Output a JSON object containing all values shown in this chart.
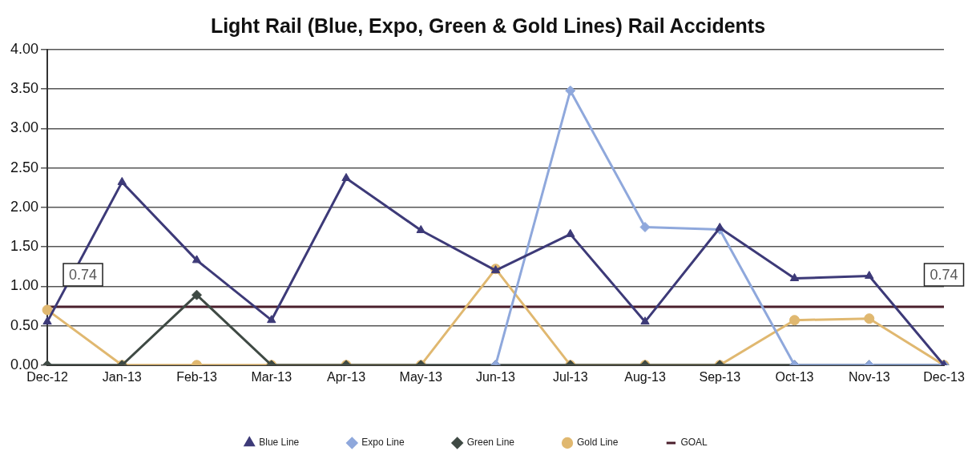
{
  "chart_data": {
    "type": "line",
    "title": "Light Rail (Blue, Expo, Green & Gold Lines) Rail Accidents",
    "categories": [
      "Dec-12",
      "Jan-13",
      "Feb-13",
      "Mar-13",
      "Apr-13",
      "May-13",
      "Jun-13",
      "Jul-13",
      "Aug-13",
      "Sep-13",
      "Oct-13",
      "Nov-13",
      "Dec-13"
    ],
    "series": [
      {
        "name": "Blue Line",
        "color": "#3d3a78",
        "marker": "triangle",
        "values": [
          0.55,
          2.32,
          1.33,
          0.57,
          2.37,
          1.71,
          1.2,
          1.66,
          0.55,
          1.74,
          1.1,
          1.13,
          0
        ]
      },
      {
        "name": "Expo Line",
        "color": "#8fa8dc",
        "marker": "diamond",
        "values": [
          null,
          null,
          null,
          null,
          null,
          null,
          0,
          3.48,
          1.75,
          1.72,
          0,
          0,
          0
        ]
      },
      {
        "name": "Green Line",
        "color": "#3f4a44",
        "marker": "diamond",
        "values": [
          0,
          0,
          0.89,
          0,
          0,
          0,
          0,
          0,
          0,
          0,
          0,
          0,
          0
        ]
      },
      {
        "name": "Gold Line",
        "color": "#e0b870",
        "marker": "circle",
        "values": [
          0.7,
          0,
          0,
          0,
          0,
          0,
          1.22,
          0,
          0,
          0,
          0.57,
          0.59,
          0
        ]
      },
      {
        "name": "GOAL",
        "color": "#4a1f2c",
        "marker": "none",
        "values": [
          0.74,
          0.74,
          0.74,
          0.74,
          0.74,
          0.74,
          0.74,
          0.74,
          0.74,
          0.74,
          0.74,
          0.74,
          0.74
        ],
        "value_labels": [
          "0.74",
          null,
          null,
          null,
          null,
          null,
          null,
          null,
          null,
          null,
          null,
          null,
          "0.74"
        ]
      }
    ],
    "ylim": [
      0,
      4
    ],
    "yticks": [
      {
        "value": 0,
        "label": "0.00"
      },
      {
        "value": 0.5,
        "label": "0.50"
      },
      {
        "value": 1,
        "label": "1.00"
      },
      {
        "value": 1.5,
        "label": "1.50"
      },
      {
        "value": 2,
        "label": "2.00"
      },
      {
        "value": 2.5,
        "label": "2.50"
      },
      {
        "value": 3,
        "label": "3.00"
      },
      {
        "value": 3.5,
        "label": "3.50"
      },
      {
        "value": 4,
        "label": "4.00"
      }
    ],
    "grid": "y",
    "legend": "bottom",
    "line_style": "solid"
  }
}
